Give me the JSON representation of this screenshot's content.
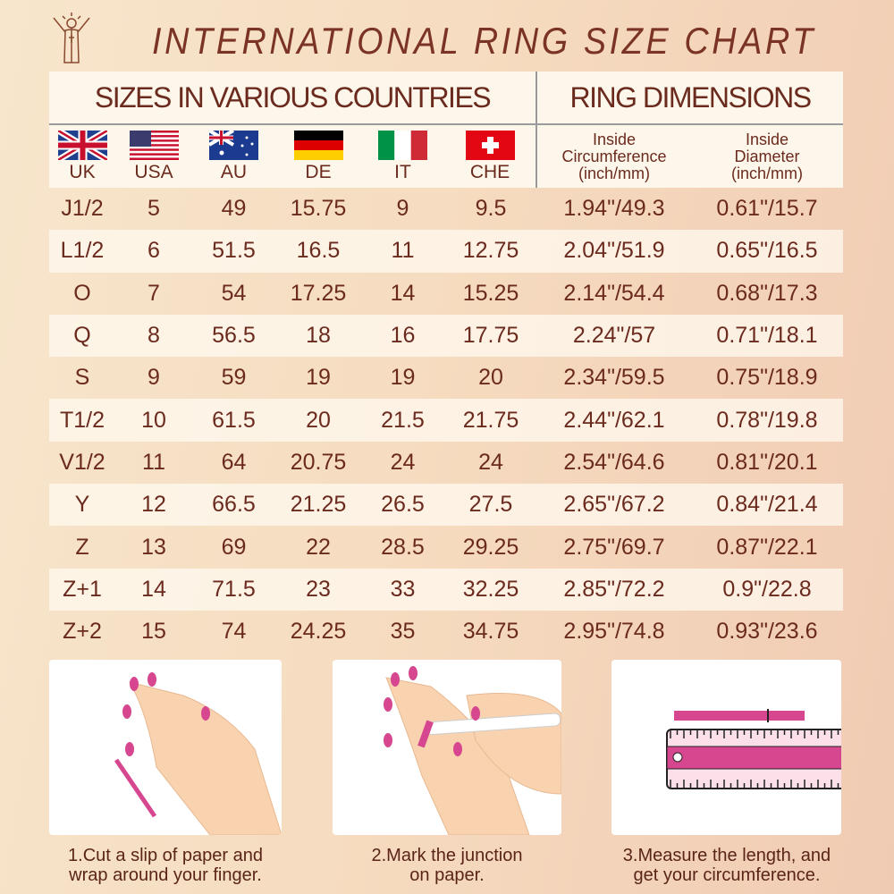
{
  "title": "INTERNATIONAL RING SIZE CHART",
  "header": {
    "sizes": "SIZES IN VARIOUS COUNTRIES",
    "dimensions": "RING DIMENSIONS"
  },
  "countries": [
    {
      "code": "UK",
      "flag": "uk-flag"
    },
    {
      "code": "USA",
      "flag": "usa-flag"
    },
    {
      "code": "AU",
      "flag": "au-flag"
    },
    {
      "code": "DE",
      "flag": "de-flag"
    },
    {
      "code": "IT",
      "flag": "it-flag"
    },
    {
      "code": "CHE",
      "flag": "che-flag"
    }
  ],
  "dim_cols": [
    {
      "l1": "Inside",
      "l2": "Circumference",
      "l3": "(inch/mm)"
    },
    {
      "l1": "Inside",
      "l2": "Diameter",
      "l3": "(inch/mm)"
    }
  ],
  "rows": [
    [
      "J1/2",
      "5",
      "49",
      "15.75",
      "9",
      "9.5",
      "1.94\"/49.3",
      "0.61\"/15.7"
    ],
    [
      "L1/2",
      "6",
      "51.5",
      "16.5",
      "11",
      "12.75",
      "2.04\"/51.9",
      "0.65\"/16.5"
    ],
    [
      "O",
      "7",
      "54",
      "17.25",
      "14",
      "15.25",
      "2.14\"/54.4",
      "0.68\"/17.3"
    ],
    [
      "Q",
      "8",
      "56.5",
      "18",
      "16",
      "17.75",
      "2.24\"/57",
      "0.71\"/18.1"
    ],
    [
      "S",
      "9",
      "59",
      "19",
      "19",
      "20",
      "2.34\"/59.5",
      "0.75\"/18.9"
    ],
    [
      "T1/2",
      "10",
      "61.5",
      "20",
      "21.5",
      "21.75",
      "2.44\"/62.1",
      "0.78\"/19.8"
    ],
    [
      "V1/2",
      "11",
      "64",
      "20.75",
      "24",
      "24",
      "2.54\"/64.6",
      "0.81\"/20.1"
    ],
    [
      "Y",
      "12",
      "66.5",
      "21.25",
      "26.5",
      "27.5",
      "2.65\"/67.2",
      "0.84\"/21.4"
    ],
    [
      "Z",
      "13",
      "69",
      "22",
      "28.5",
      "29.25",
      "2.75\"/69.7",
      "0.87\"/22.1"
    ],
    [
      "Z+1",
      "14",
      "71.5",
      "23",
      "33",
      "32.25",
      "2.85\"/72.2",
      "0.9\"/22.8"
    ],
    [
      "Z+2",
      "15",
      "74",
      "24.25",
      "35",
      "34.75",
      "2.95\"/74.8",
      "0.93\"/23.6"
    ]
  ],
  "steps": [
    {
      "l1": "1.Cut a slip of paper and",
      "l2": "wrap around your finger."
    },
    {
      "l1": "2.Mark the junction",
      "l2": "on paper."
    },
    {
      "l1": "3.Measure the length, and",
      "l2": "get your circumference."
    }
  ],
  "colors": {
    "text": "#6b2a1e",
    "pink": "#d6478f",
    "skin": "#f9d3b0"
  }
}
